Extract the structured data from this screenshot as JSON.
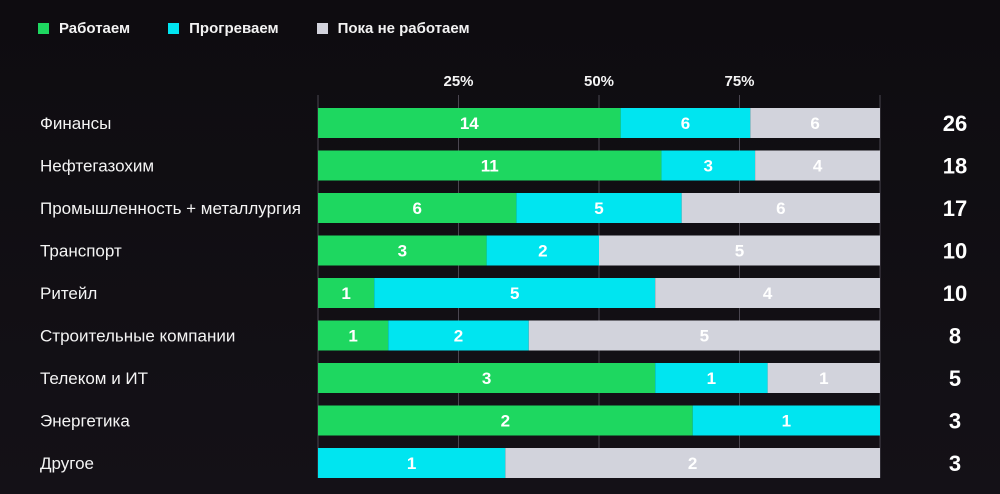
{
  "chart_data": {
    "type": "bar",
    "orientation": "horizontal",
    "stacked": "percent",
    "title": "",
    "xlabel": "",
    "ylabel": "",
    "xlim": [
      0,
      100
    ],
    "grid": true,
    "legend_position": "top-left",
    "x_ticks": [
      "25%",
      "50%",
      "75%"
    ],
    "x_tick_values": [
      25,
      50,
      75
    ],
    "categories": [
      "Финансы",
      "Нефтегазохим",
      "Промышленность + металлургия",
      "Транспорт",
      "Ритейл",
      "Строительные компании",
      "Телеком и ИТ",
      "Энергетика",
      "Другое"
    ],
    "series": [
      {
        "name": "Работаем",
        "color": "#1ed760",
        "values": [
          14,
          11,
          6,
          3,
          1,
          1,
          3,
          2,
          0
        ]
      },
      {
        "name": "Прогреваем",
        "color": "#00e5f0",
        "values": [
          6,
          3,
          5,
          2,
          5,
          2,
          1,
          1,
          1
        ]
      },
      {
        "name": "Пока не работаем",
        "color": "#d2d3dc",
        "values": [
          6,
          4,
          6,
          5,
          4,
          5,
          1,
          0,
          2
        ]
      }
    ],
    "totals": [
      26,
      18,
      17,
      10,
      10,
      8,
      5,
      3,
      3
    ]
  }
}
